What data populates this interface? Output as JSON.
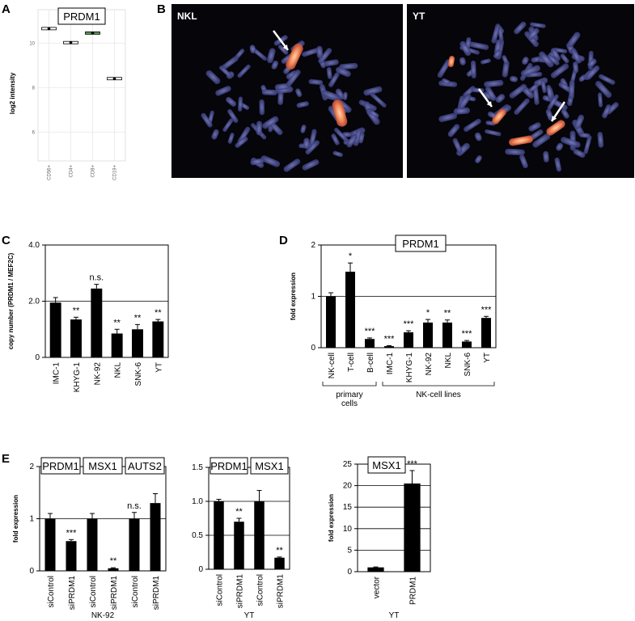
{
  "panels": {
    "A": {
      "label": "A"
    },
    "B": {
      "label": "B",
      "images": [
        {
          "label": "NKL"
        },
        {
          "label": "YT"
        }
      ]
    },
    "C": {
      "label": "C"
    },
    "D": {
      "label": "D"
    },
    "E": {
      "label": "E"
    }
  },
  "colors": {
    "bar": "#000000",
    "background_micro": "#05050a",
    "chromosome": "#5a5fa0",
    "fish_signal": "#f08a5a",
    "box_highlight": "#5a9a5a",
    "grid": "#e6e6e6"
  },
  "chart_data": [
    {
      "id": "A",
      "type": "box",
      "title": "PRDM1",
      "ylabel": "log2 intensity",
      "categories": [
        "CD56+",
        "CD4+",
        "CD8+",
        "CD19+"
      ],
      "values": [
        10.65,
        10.02,
        10.45,
        8.4
      ],
      "ylim": [
        4.7,
        11.5
      ],
      "yticks": [
        6,
        8,
        10
      ],
      "grid": true
    },
    {
      "id": "C",
      "type": "bar",
      "ylabel": "copy number (PRDM1 / MEF2C)",
      "categories": [
        "IMC-1",
        "KHYG-1",
        "NK-92",
        "NKL",
        "SNK-6",
        "YT"
      ],
      "values": [
        1.95,
        1.35,
        2.45,
        0.85,
        1.0,
        1.28
      ],
      "errors": [
        0.18,
        0.08,
        0.15,
        0.15,
        0.17,
        0.07
      ],
      "significance": [
        "",
        "**",
        "n.s.",
        "**",
        "**",
        "**"
      ],
      "ylim": [
        0,
        4.0
      ],
      "yticks": [
        "0",
        "2.0",
        "4.0"
      ],
      "hline": 2.0
    },
    {
      "id": "D",
      "type": "bar",
      "title": "PRDM1",
      "ylabel": "fold expression",
      "categories": [
        "NK-cell",
        "T-cell",
        "B-cell",
        "IMC-1",
        "KHYG-1",
        "NK-92",
        "NKL",
        "SNK-6",
        "YT"
      ],
      "values": [
        1.0,
        1.48,
        0.17,
        0.03,
        0.3,
        0.49,
        0.49,
        0.12,
        0.58
      ],
      "errors": [
        0.07,
        0.17,
        0.02,
        0.01,
        0.03,
        0.06,
        0.05,
        0.02,
        0.03
      ],
      "significance": [
        "",
        "*",
        "***",
        "***",
        "***",
        "*",
        "**",
        "***",
        "***"
      ],
      "ylim": [
        0,
        2
      ],
      "yticks": [
        "0",
        "1",
        "2"
      ],
      "hline": 1,
      "groups": [
        {
          "label": "primary\ncells"
        },
        {
          "label": "NK-cell lines"
        }
      ]
    },
    {
      "id": "E1",
      "type": "bar",
      "ylabel": "fold expression",
      "xlabel": "NK-92",
      "boxes": [
        "PRDM1",
        "MSX1",
        "AUTS2"
      ],
      "categories": [
        "siControl",
        "siPRDM1",
        "siControl",
        "siPRDM1",
        "siControl",
        "siPRDM1"
      ],
      "values": [
        1.0,
        0.57,
        1.0,
        0.05,
        1.0,
        1.3
      ],
      "errors": [
        0.1,
        0.03,
        0.1,
        0.01,
        0.12,
        0.18
      ],
      "significance": [
        "",
        "***",
        "",
        "**",
        "n.s.",
        ""
      ],
      "ylim": [
        0,
        2
      ],
      "yticks": [
        "0",
        "1",
        "2"
      ],
      "hline": 1
    },
    {
      "id": "E2",
      "type": "bar",
      "xlabel": "YT",
      "boxes": [
        "PRDM1",
        "MSX1"
      ],
      "categories": [
        "siControl",
        "siPRDM1",
        "siControl",
        "siPRDM1"
      ],
      "values": [
        1.0,
        0.7,
        1.0,
        0.17
      ],
      "errors": [
        0.03,
        0.05,
        0.16,
        0.01
      ],
      "significance": [
        "",
        "**",
        "",
        "**"
      ],
      "ylim": [
        0,
        1.5
      ],
      "yticks": [
        "0",
        "0.5",
        "1.0",
        "1.5"
      ],
      "grid": true
    },
    {
      "id": "E3",
      "type": "bar",
      "ylabel": "fold expression",
      "xlabel": "YT",
      "boxes": [
        "MSX1"
      ],
      "categories": [
        "vector",
        "PRDM1"
      ],
      "values": [
        1.0,
        20.5
      ],
      "errors": [
        0.1,
        3.0
      ],
      "significance": [
        "",
        "***"
      ],
      "ylim": [
        0,
        25
      ],
      "yticks": [
        "0",
        "5",
        "10",
        "15",
        "20",
        "25"
      ],
      "grid": true
    }
  ]
}
